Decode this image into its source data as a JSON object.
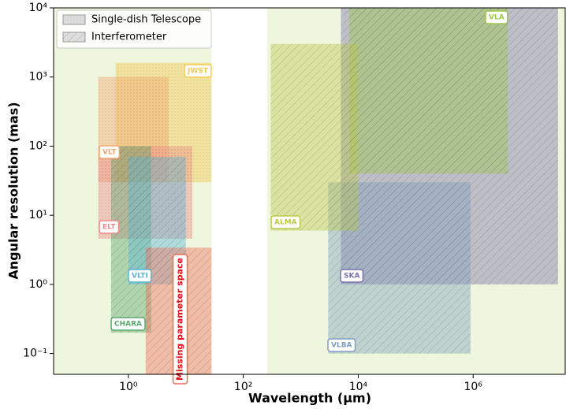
{
  "chart_data": {
    "type": "range-rect",
    "x_label": "Wavelength (μm)",
    "y_label": "Angular resolution (mas)",
    "log_x": true,
    "log_y": true,
    "xlim": [
      0.05,
      40000000
    ],
    "ylim": [
      0.05,
      10000
    ],
    "xticks": [
      {
        "value": 1,
        "label": "10⁰"
      },
      {
        "value": 100,
        "label": "10²"
      },
      {
        "value": 10000,
        "label": "10⁴"
      },
      {
        "value": 1000000,
        "label": "10⁶"
      }
    ],
    "yticks": [
      {
        "value": 0.1,
        "label": "10⁻¹"
      },
      {
        "value": 1,
        "label": "10⁰"
      },
      {
        "value": 10,
        "label": "10¹"
      },
      {
        "value": 100,
        "label": "10²"
      },
      {
        "value": 1000,
        "label": "10³"
      },
      {
        "value": 10000,
        "label": "10⁴"
      }
    ],
    "bands": [
      {
        "x": [
          0.05,
          28
        ],
        "color": "#eef6dd"
      },
      {
        "x": [
          260,
          40000000
        ],
        "color": "#eef6dd"
      }
    ],
    "legend": [
      {
        "name": "Single-dish Telescope",
        "kind": "single"
      },
      {
        "name": "Interferometer",
        "kind": "interferometer"
      }
    ],
    "legend_position": "upper left",
    "series": [
      {
        "name": "SKA",
        "kind": "interferometer",
        "color": "#7a6fa8",
        "x": [
          5000,
          30000000
        ],
        "y": [
          1,
          10000
        ]
      },
      {
        "name": "VLA",
        "kind": "interferometer",
        "color": "#9cc94a",
        "x": [
          7000,
          4000000
        ],
        "y": [
          40,
          10000
        ]
      },
      {
        "name": "VLBA",
        "kind": "interferometer",
        "color": "#7f9fbf",
        "x": [
          3000,
          900000
        ],
        "y": [
          0.1,
          30
        ]
      },
      {
        "name": "ALMA",
        "kind": "interferometer",
        "color": "#bcc94a",
        "x": [
          300,
          10000
        ],
        "y": [
          6,
          3000
        ]
      },
      {
        "name": "JWST",
        "kind": "single",
        "color": "#f7c948",
        "x": [
          0.6,
          28
        ],
        "y": [
          30,
          1600
        ]
      },
      {
        "name": "VLT",
        "kind": "single",
        "color": "#f5a66e",
        "x": [
          0.3,
          5
        ],
        "y": [
          30,
          1000
        ]
      },
      {
        "name": "ELT",
        "kind": "single",
        "color": "#f08a8a",
        "x": [
          0.3,
          13
        ],
        "y": [
          4.6,
          100
        ]
      },
      {
        "name": "CHARA",
        "kind": "interferometer",
        "color": "#5aa86e",
        "x": [
          0.5,
          2.5
        ],
        "y": [
          0.2,
          100
        ]
      },
      {
        "name": "VLTI",
        "kind": "interferometer",
        "color": "#5ab4d6",
        "x": [
          1,
          10
        ],
        "y": [
          1,
          70
        ]
      },
      {
        "name": "Missing parameter space",
        "kind": "interferometer",
        "color": "#f26b5b",
        "x": [
          2,
          28
        ],
        "y": [
          0.05,
          3.4
        ]
      }
    ]
  }
}
